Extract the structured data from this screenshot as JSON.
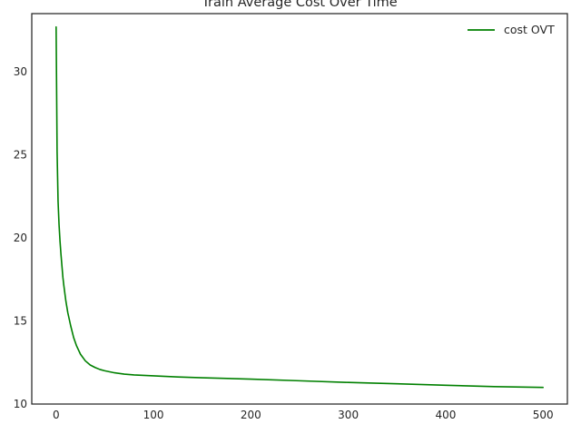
{
  "chart_data": {
    "type": "line",
    "title": "Train Average Cost Over Time",
    "xlabel": "",
    "ylabel": "",
    "xlim": [
      -25,
      525
    ],
    "ylim": [
      10,
      33.5
    ],
    "xticks": [
      0,
      100,
      200,
      300,
      400,
      500
    ],
    "yticks": [
      10,
      15,
      20,
      25,
      30
    ],
    "grid": false,
    "legend_position": "top-right",
    "series": [
      {
        "name": "cost OVT",
        "color": "#008000",
        "x": [
          0,
          1,
          2,
          3,
          4,
          5,
          6,
          7,
          8,
          10,
          12,
          15,
          18,
          21,
          25,
          30,
          35,
          40,
          45,
          50,
          60,
          70,
          80,
          100,
          125,
          150,
          200,
          250,
          300,
          350,
          400,
          450,
          500
        ],
        "y": [
          32.7,
          25.2,
          22.2,
          20.8,
          19.8,
          19.0,
          18.3,
          17.6,
          17.1,
          16.2,
          15.5,
          14.7,
          14.0,
          13.5,
          13.0,
          12.6,
          12.35,
          12.2,
          12.08,
          12.0,
          11.88,
          11.8,
          11.75,
          11.7,
          11.63,
          11.58,
          11.5,
          11.4,
          11.3,
          11.22,
          11.13,
          11.05,
          11.0
        ]
      }
    ]
  }
}
